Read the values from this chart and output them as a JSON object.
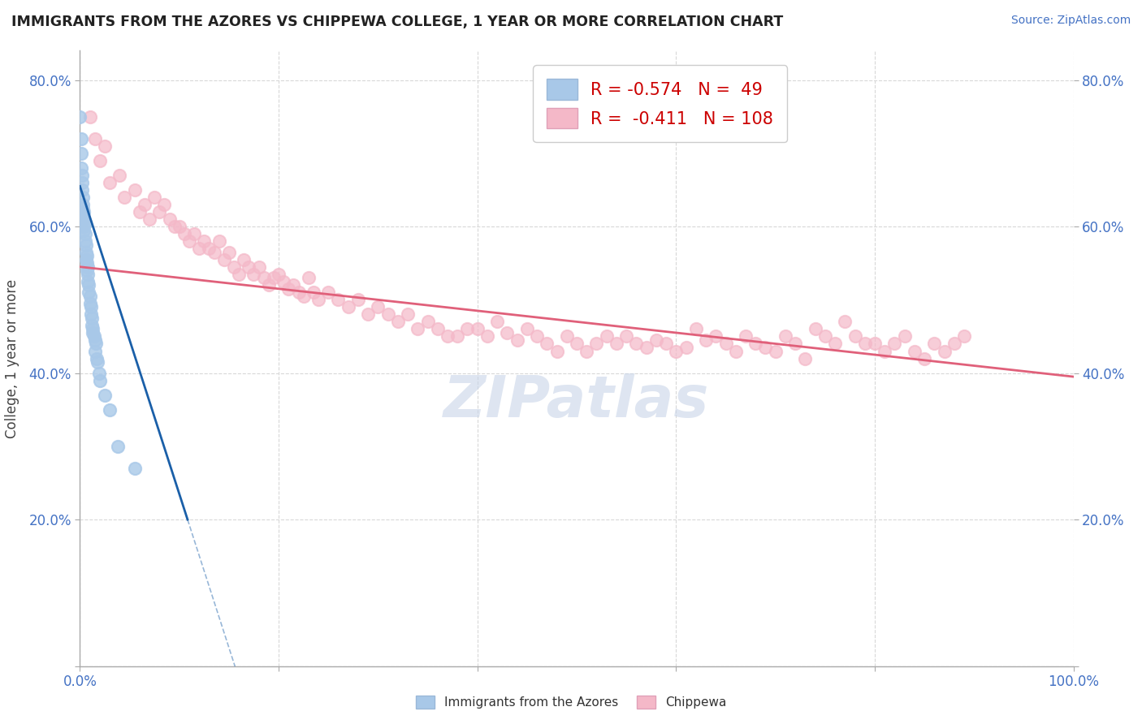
{
  "title": "IMMIGRANTS FROM THE AZORES VS CHIPPEWA COLLEGE, 1 YEAR OR MORE CORRELATION CHART",
  "source_text": "Source: ZipAtlas.com",
  "ylabel": "College, 1 year or more",
  "xlim": [
    0,
    1.0
  ],
  "ylim": [
    0,
    0.84
  ],
  "xticks": [
    0.0,
    0.2,
    0.4,
    0.6,
    0.8,
    1.0
  ],
  "yticks": [
    0.0,
    0.2,
    0.4,
    0.6,
    0.8
  ],
  "ytick_labels": [
    "",
    "20.0%",
    "40.0%",
    "60.0%",
    "80.0%"
  ],
  "xtick_labels_bottom": [
    "0.0%",
    "",
    "",
    "",
    "",
    "100.0%"
  ],
  "legend_R1": "-0.574",
  "legend_N1": "49",
  "legend_R2": "-0.411",
  "legend_N2": "108",
  "blue_color": "#a8c8e8",
  "pink_color": "#f4b8c8",
  "blue_line_color": "#1a5fa8",
  "pink_line_color": "#e0607a",
  "blue_scatter": [
    [
      0.0,
      0.75
    ],
    [
      0.001,
      0.72
    ],
    [
      0.001,
      0.7
    ],
    [
      0.001,
      0.68
    ],
    [
      0.002,
      0.67
    ],
    [
      0.002,
      0.66
    ],
    [
      0.002,
      0.65
    ],
    [
      0.003,
      0.64
    ],
    [
      0.003,
      0.63
    ],
    [
      0.003,
      0.625
    ],
    [
      0.003,
      0.615
    ],
    [
      0.004,
      0.62
    ],
    [
      0.004,
      0.61
    ],
    [
      0.004,
      0.6
    ],
    [
      0.004,
      0.595
    ],
    [
      0.005,
      0.605
    ],
    [
      0.005,
      0.59
    ],
    [
      0.005,
      0.58
    ],
    [
      0.006,
      0.575
    ],
    [
      0.006,
      0.565
    ],
    [
      0.006,
      0.555
    ],
    [
      0.007,
      0.56
    ],
    [
      0.007,
      0.55
    ],
    [
      0.007,
      0.54
    ],
    [
      0.008,
      0.545
    ],
    [
      0.008,
      0.535
    ],
    [
      0.008,
      0.525
    ],
    [
      0.009,
      0.52
    ],
    [
      0.009,
      0.51
    ],
    [
      0.01,
      0.505
    ],
    [
      0.01,
      0.495
    ],
    [
      0.011,
      0.49
    ],
    [
      0.011,
      0.48
    ],
    [
      0.012,
      0.475
    ],
    [
      0.012,
      0.465
    ],
    [
      0.013,
      0.46
    ],
    [
      0.013,
      0.455
    ],
    [
      0.014,
      0.45
    ],
    [
      0.015,
      0.445
    ],
    [
      0.015,
      0.43
    ],
    [
      0.016,
      0.44
    ],
    [
      0.017,
      0.42
    ],
    [
      0.018,
      0.415
    ],
    [
      0.019,
      0.4
    ],
    [
      0.02,
      0.39
    ],
    [
      0.025,
      0.37
    ],
    [
      0.03,
      0.35
    ],
    [
      0.038,
      0.3
    ],
    [
      0.055,
      0.27
    ]
  ],
  "pink_scatter": [
    [
      0.01,
      0.75
    ],
    [
      0.015,
      0.72
    ],
    [
      0.02,
      0.69
    ],
    [
      0.025,
      0.71
    ],
    [
      0.03,
      0.66
    ],
    [
      0.04,
      0.67
    ],
    [
      0.045,
      0.64
    ],
    [
      0.055,
      0.65
    ],
    [
      0.06,
      0.62
    ],
    [
      0.065,
      0.63
    ],
    [
      0.07,
      0.61
    ],
    [
      0.075,
      0.64
    ],
    [
      0.08,
      0.62
    ],
    [
      0.085,
      0.63
    ],
    [
      0.09,
      0.61
    ],
    [
      0.095,
      0.6
    ],
    [
      0.1,
      0.6
    ],
    [
      0.105,
      0.59
    ],
    [
      0.11,
      0.58
    ],
    [
      0.115,
      0.59
    ],
    [
      0.12,
      0.57
    ],
    [
      0.125,
      0.58
    ],
    [
      0.13,
      0.57
    ],
    [
      0.135,
      0.565
    ],
    [
      0.14,
      0.58
    ],
    [
      0.145,
      0.555
    ],
    [
      0.15,
      0.565
    ],
    [
      0.155,
      0.545
    ],
    [
      0.16,
      0.535
    ],
    [
      0.165,
      0.555
    ],
    [
      0.17,
      0.545
    ],
    [
      0.175,
      0.535
    ],
    [
      0.18,
      0.545
    ],
    [
      0.185,
      0.53
    ],
    [
      0.19,
      0.52
    ],
    [
      0.195,
      0.53
    ],
    [
      0.2,
      0.535
    ],
    [
      0.205,
      0.525
    ],
    [
      0.21,
      0.515
    ],
    [
      0.215,
      0.52
    ],
    [
      0.22,
      0.51
    ],
    [
      0.225,
      0.505
    ],
    [
      0.23,
      0.53
    ],
    [
      0.235,
      0.51
    ],
    [
      0.24,
      0.5
    ],
    [
      0.25,
      0.51
    ],
    [
      0.26,
      0.5
    ],
    [
      0.27,
      0.49
    ],
    [
      0.28,
      0.5
    ],
    [
      0.29,
      0.48
    ],
    [
      0.3,
      0.49
    ],
    [
      0.31,
      0.48
    ],
    [
      0.32,
      0.47
    ],
    [
      0.33,
      0.48
    ],
    [
      0.34,
      0.46
    ],
    [
      0.35,
      0.47
    ],
    [
      0.36,
      0.46
    ],
    [
      0.37,
      0.45
    ],
    [
      0.38,
      0.45
    ],
    [
      0.39,
      0.46
    ],
    [
      0.4,
      0.46
    ],
    [
      0.41,
      0.45
    ],
    [
      0.42,
      0.47
    ],
    [
      0.43,
      0.455
    ],
    [
      0.44,
      0.445
    ],
    [
      0.45,
      0.46
    ],
    [
      0.46,
      0.45
    ],
    [
      0.47,
      0.44
    ],
    [
      0.48,
      0.43
    ],
    [
      0.49,
      0.45
    ],
    [
      0.5,
      0.44
    ],
    [
      0.51,
      0.43
    ],
    [
      0.52,
      0.44
    ],
    [
      0.53,
      0.45
    ],
    [
      0.54,
      0.44
    ],
    [
      0.55,
      0.45
    ],
    [
      0.56,
      0.44
    ],
    [
      0.57,
      0.435
    ],
    [
      0.58,
      0.445
    ],
    [
      0.59,
      0.44
    ],
    [
      0.6,
      0.43
    ],
    [
      0.61,
      0.435
    ],
    [
      0.62,
      0.46
    ],
    [
      0.63,
      0.445
    ],
    [
      0.64,
      0.45
    ],
    [
      0.65,
      0.44
    ],
    [
      0.66,
      0.43
    ],
    [
      0.67,
      0.45
    ],
    [
      0.68,
      0.44
    ],
    [
      0.69,
      0.435
    ],
    [
      0.7,
      0.43
    ],
    [
      0.71,
      0.45
    ],
    [
      0.72,
      0.44
    ],
    [
      0.73,
      0.42
    ],
    [
      0.74,
      0.46
    ],
    [
      0.75,
      0.45
    ],
    [
      0.76,
      0.44
    ],
    [
      0.77,
      0.47
    ],
    [
      0.78,
      0.45
    ],
    [
      0.79,
      0.44
    ],
    [
      0.8,
      0.44
    ],
    [
      0.81,
      0.43
    ],
    [
      0.82,
      0.44
    ],
    [
      0.83,
      0.45
    ],
    [
      0.84,
      0.43
    ],
    [
      0.85,
      0.42
    ],
    [
      0.86,
      0.44
    ],
    [
      0.87,
      0.43
    ],
    [
      0.88,
      0.44
    ],
    [
      0.89,
      0.45
    ]
  ],
  "blue_line_x0": 0.0,
  "blue_line_y0": 0.655,
  "blue_line_slope": -4.2,
  "pink_line_x0": 0.0,
  "pink_line_y0": 0.545,
  "pink_line_x1": 1.0,
  "pink_line_y1": 0.395,
  "background_color": "#ffffff",
  "grid_color": "#d8d8d8",
  "watermark_text": "ZIPatlas",
  "watermark_color": "#c8d4e8"
}
